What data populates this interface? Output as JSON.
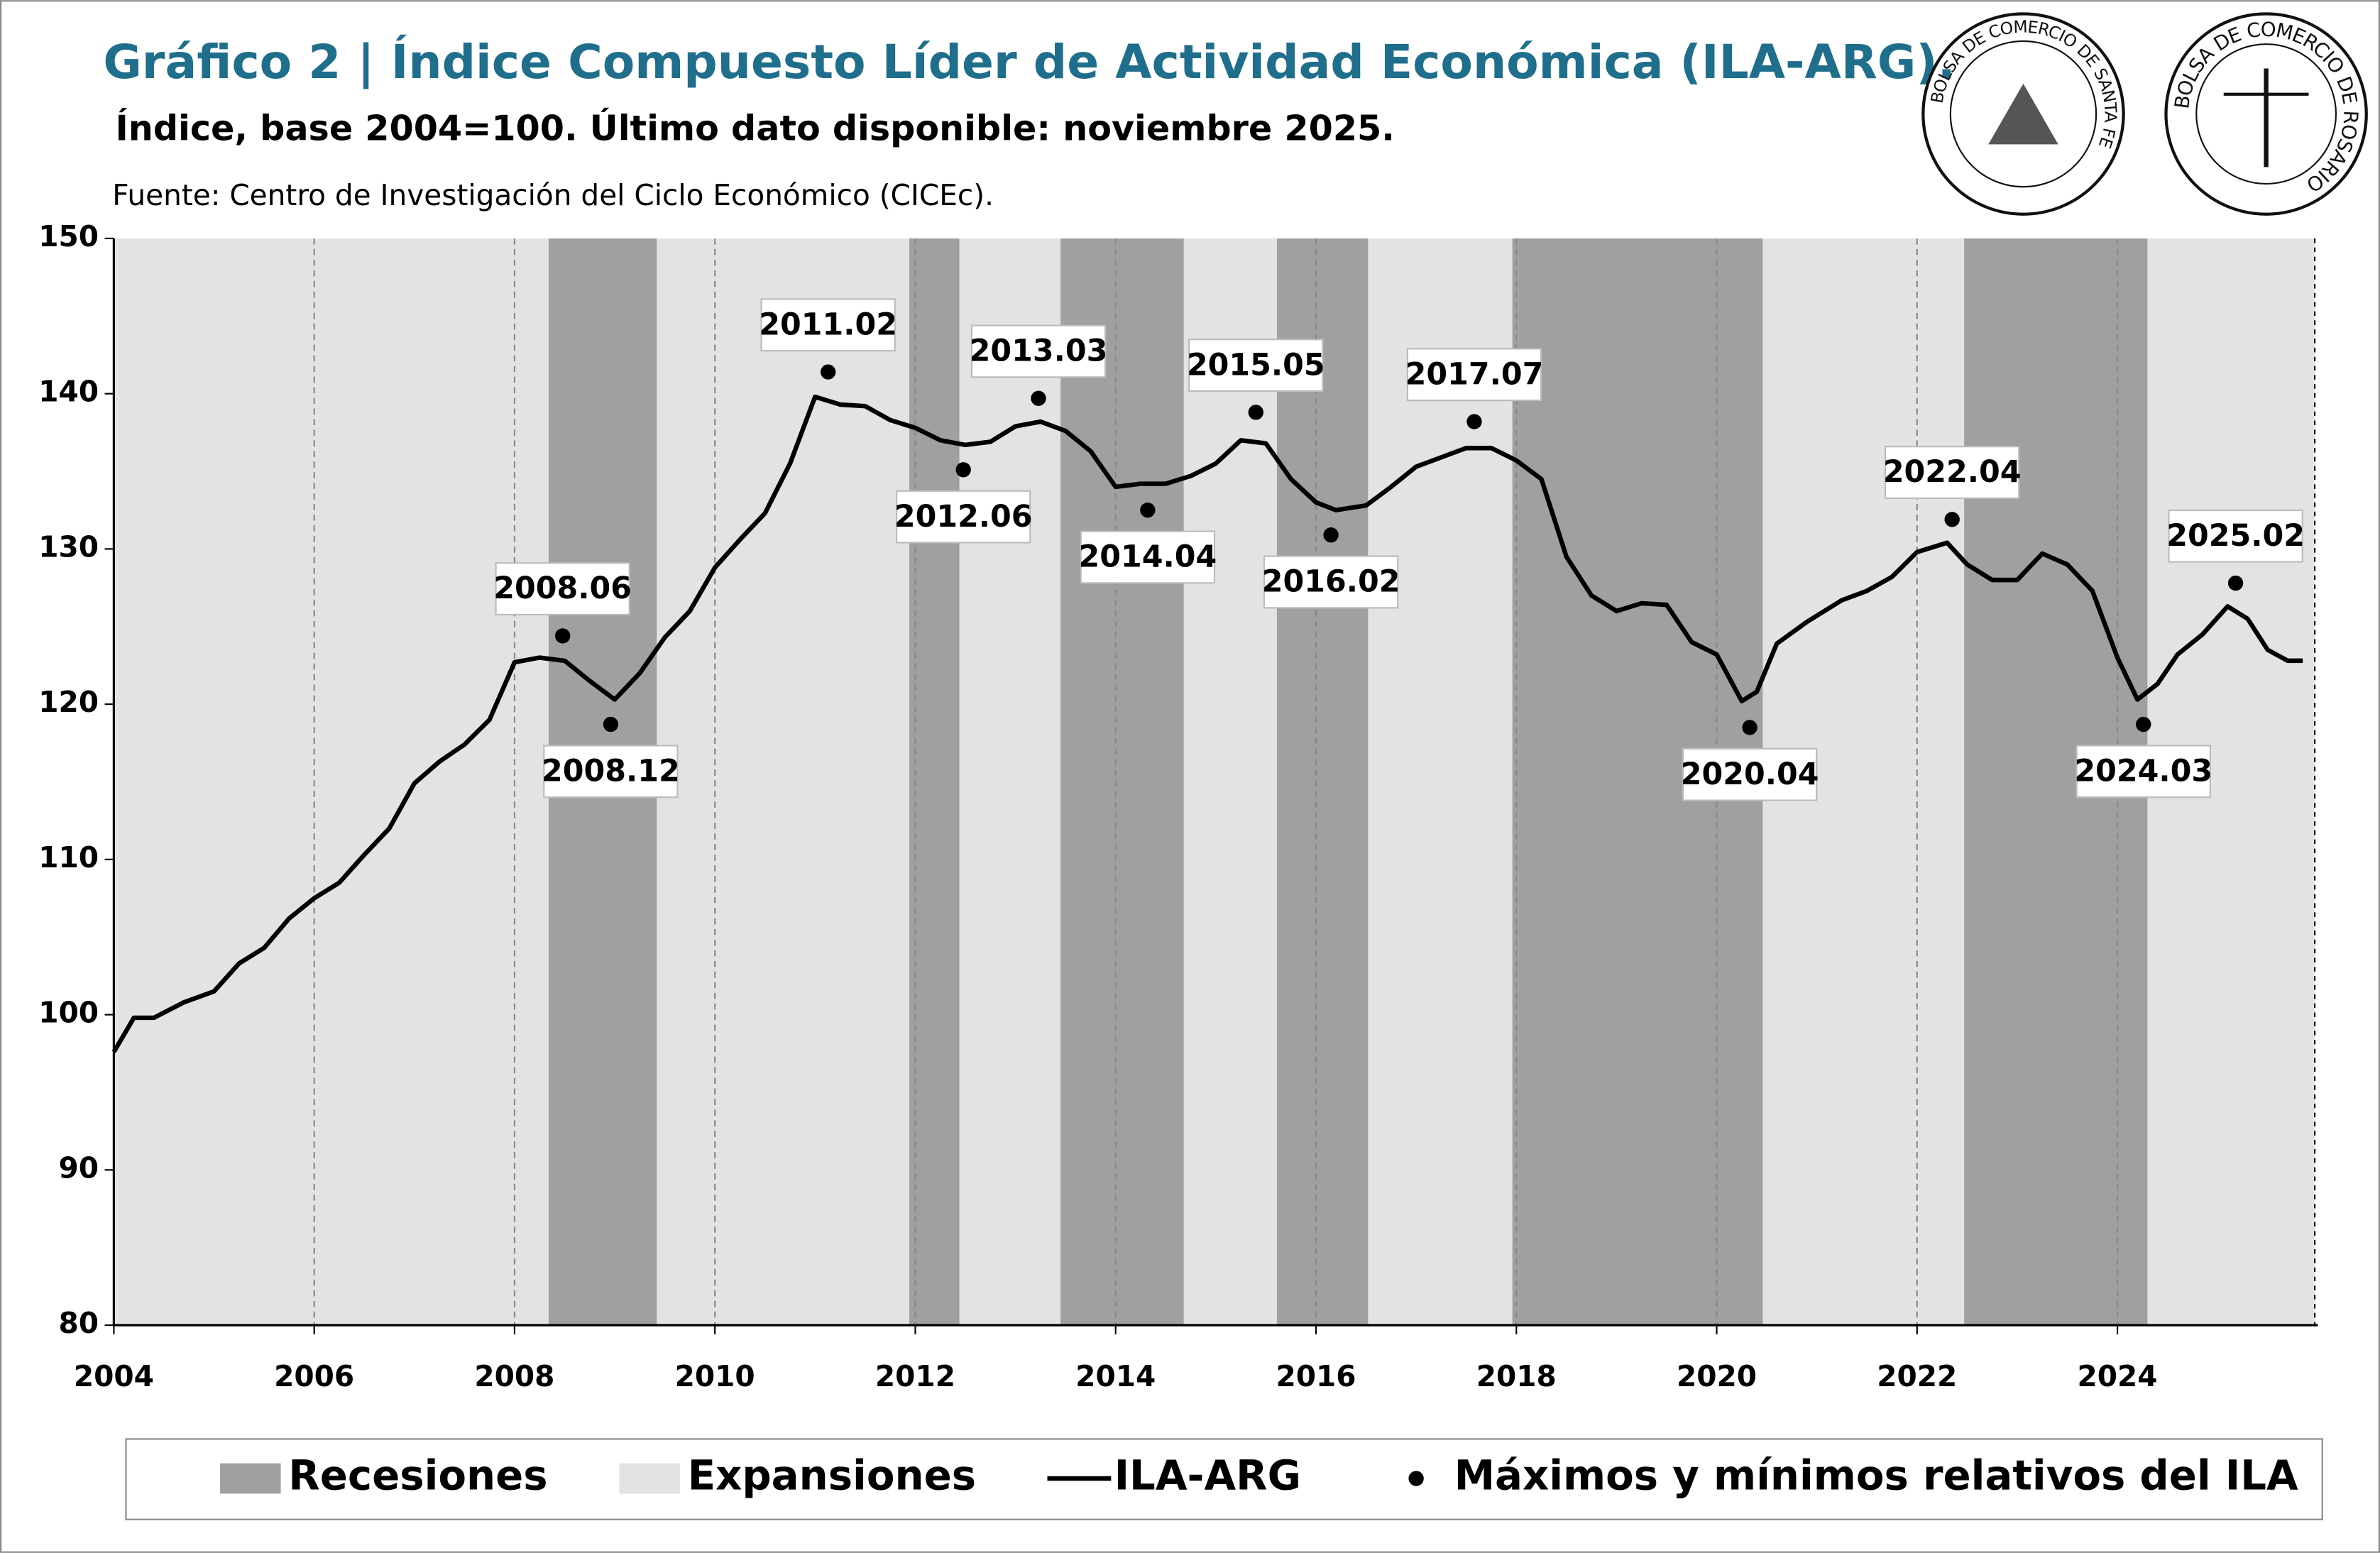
{
  "chart_data": {
    "type": "line",
    "title": "Gráfico 2 | Índice Compuesto Líder de Actividad Económica (ILA-ARG).",
    "subtitle": "Índice, base 2004=100. Último dato disponible: noviembre 2025.",
    "source": "Fuente: Centro de Investigación del Ciclo Económico (CICEc).",
    "logos": [
      "BOLSA DE COMERCIO DE SANTA FE",
      "BOLSA DE COMERCIO DE ROSARIO"
    ],
    "xlim": [
      2004,
      2026
    ],
    "xticks": [
      2004,
      2006,
      2008,
      2010,
      2012,
      2014,
      2016,
      2018,
      2020,
      2022,
      2024
    ],
    "ylim": [
      80,
      150
    ],
    "yticks": [
      80,
      90,
      100,
      110,
      120,
      130,
      140,
      150
    ],
    "grid": true,
    "recessions": {
      "name": "Recesiones",
      "color": "#a0a0a0",
      "periods": [
        [
          2008.34,
          2009.42
        ],
        [
          2011.94,
          2012.44
        ],
        [
          2013.45,
          2014.68
        ],
        [
          2015.61,
          2016.52
        ],
        [
          2017.96,
          2020.46
        ],
        [
          2022.47,
          2024.3
        ]
      ]
    },
    "expansions": {
      "name": "Expansiones",
      "color": "#e3e3e3",
      "periods": [
        [
          2004,
          2008.34
        ],
        [
          2009.42,
          2011.94
        ],
        [
          2012.44,
          2013.45
        ],
        [
          2014.68,
          2015.61
        ],
        [
          2016.52,
          2017.96
        ],
        [
          2020.46,
          2022.47
        ],
        [
          2024.3,
          2025.97
        ]
      ]
    },
    "series": [
      {
        "name": "ILA-ARG",
        "color": "#000000",
        "x": [
          2004.0,
          2004.2,
          2004.4,
          2004.7,
          2005.0,
          2005.25,
          2005.5,
          2005.75,
          2006.0,
          2006.25,
          2006.5,
          2006.75,
          2007.0,
          2007.25,
          2007.5,
          2007.75,
          2008.0,
          2008.25,
          2008.5,
          2008.75,
          2009.0,
          2009.25,
          2009.5,
          2009.75,
          2010.0,
          2010.25,
          2010.5,
          2010.75,
          2011.0,
          2011.25,
          2011.5,
          2011.75,
          2012.0,
          2012.25,
          2012.5,
          2012.75,
          2013.0,
          2013.25,
          2013.5,
          2013.75,
          2014.0,
          2014.25,
          2014.5,
          2014.75,
          2015.0,
          2015.25,
          2015.5,
          2015.75,
          2016.0,
          2016.2,
          2016.5,
          2016.75,
          2017.0,
          2017.25,
          2017.5,
          2017.75,
          2018.0,
          2018.25,
          2018.5,
          2018.75,
          2019.0,
          2019.25,
          2019.5,
          2019.75,
          2020.0,
          2020.25,
          2020.4,
          2020.6,
          2020.9,
          2021.25,
          2021.5,
          2021.75,
          2022.0,
          2022.3,
          2022.5,
          2022.75,
          2023.0,
          2023.25,
          2023.5,
          2023.75,
          2024.0,
          2024.2,
          2024.4,
          2024.6,
          2024.85,
          2025.1,
          2025.3,
          2025.5,
          2025.7,
          2025.85
        ],
        "values": [
          97.6,
          99.8,
          99.8,
          100.8,
          101.5,
          103.3,
          104.3,
          106.2,
          107.5,
          108.5,
          110.3,
          112.0,
          114.9,
          116.3,
          117.4,
          119.0,
          122.7,
          123.0,
          122.8,
          121.5,
          120.3,
          122.0,
          124.3,
          126.0,
          128.8,
          130.6,
          132.3,
          135.5,
          139.8,
          139.3,
          139.2,
          138.3,
          137.8,
          137.0,
          136.7,
          136.9,
          137.9,
          138.2,
          137.6,
          136.3,
          134.0,
          134.2,
          134.2,
          134.7,
          135.5,
          137.0,
          136.8,
          134.5,
          133.0,
          132.5,
          132.8,
          134.0,
          135.3,
          135.9,
          136.5,
          136.5,
          135.7,
          134.5,
          129.5,
          127.0,
          126.0,
          126.5,
          126.4,
          124.0,
          123.2,
          120.2,
          120.8,
          123.9,
          125.3,
          126.7,
          127.3,
          128.2,
          129.8,
          130.4,
          129.0,
          128.0,
          128.0,
          129.7,
          129.0,
          127.3,
          123.0,
          120.3,
          121.3,
          123.2,
          124.5,
          126.3,
          125.5,
          123.5,
          122.8,
          122.8
        ]
      }
    ],
    "extrema": {
      "name": "Máximos y mínimos relativos del ILA",
      "x": [
        2008.48,
        2008.96,
        2011.13,
        2012.48,
        2013.23,
        2014.32,
        2015.4,
        2016.15,
        2017.58,
        2020.33,
        2022.35,
        2024.26,
        2025.18
      ],
      "values": [
        124.4,
        118.7,
        141.4,
        135.1,
        139.7,
        132.5,
        138.8,
        130.9,
        138.2,
        118.5,
        131.9,
        118.7,
        127.8
      ],
      "labels": [
        "2008.06",
        "2008.12",
        "2011.02",
        "2012.06",
        "2013.03",
        "2014.04",
        "2015.05",
        "2016.02",
        "2017.07",
        "2020.04",
        "2022.04",
        "2024.03",
        "2025.02"
      ]
    }
  }
}
